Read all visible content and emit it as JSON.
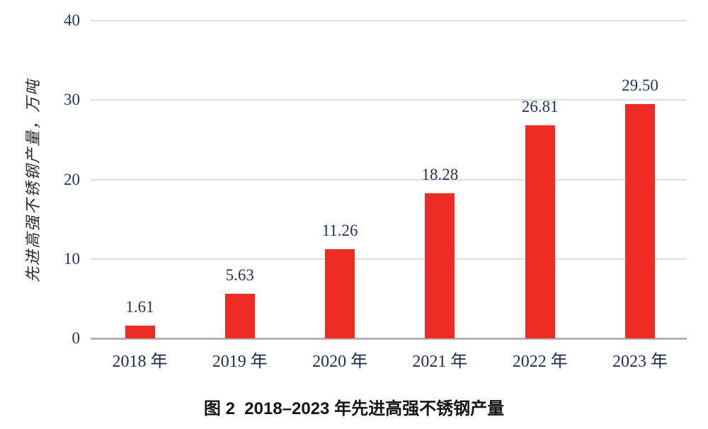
{
  "figure": {
    "caption": "图 2  2018–2023 年先进高强不锈钢产量"
  },
  "chart_data": {
    "type": "bar",
    "title": "图 2 2018–2023 年先进高强不锈钢产量",
    "categories": [
      "2018 年",
      "2019 年",
      "2020 年",
      "2021 年",
      "2022 年",
      "2023 年"
    ],
    "values": [
      1.61,
      5.63,
      11.26,
      18.28,
      26.81,
      29.5
    ],
    "value_labels": [
      "1.61",
      "5.63",
      "11.26",
      "18.28",
      "26.81",
      "29.50"
    ],
    "xlabel": "",
    "ylabel": "先进高强不锈钢产量，万吨",
    "ylim": [
      0,
      40
    ],
    "yticks": [
      0,
      10,
      20,
      30,
      40
    ],
    "grid": "horizontal",
    "legend": "none",
    "colors": {
      "bar": "#ee2b24",
      "tick_label_text": "#22335c",
      "value_label_text": "#22335c",
      "x_label_text": "#1f2c4d",
      "axis_line": "#b3b3b3",
      "gridline": "#dedede",
      "caption_text": "#161616",
      "background": "#ffffff"
    }
  }
}
